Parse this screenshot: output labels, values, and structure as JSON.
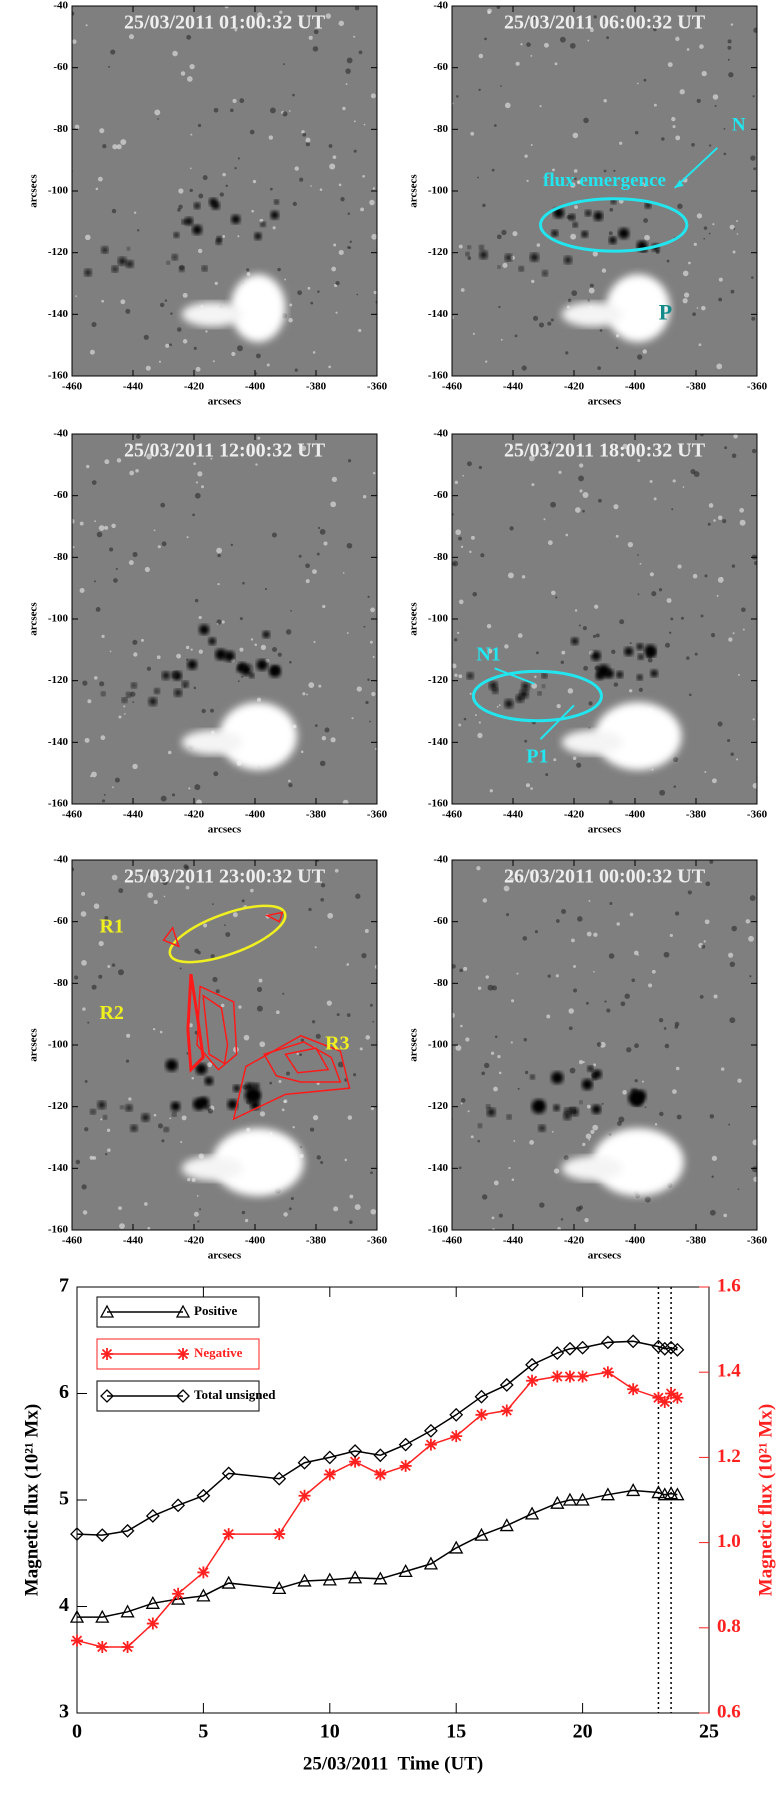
{
  "chart_data": [
    {
      "type": "image",
      "title": "25/03/2011 01:00:32 UT",
      "xlabel": "arcsecs",
      "ylabel": "arcsecs",
      "xlim": [
        -460,
        -360
      ],
      "ylim": [
        -160,
        -40
      ],
      "xticks": [
        -460,
        -440,
        -420,
        -400,
        -380,
        -360
      ],
      "yticks": [
        -160,
        -140,
        -120,
        -100,
        -80,
        -60,
        -40
      ],
      "annotations": []
    },
    {
      "type": "image",
      "title": "25/03/2011 06:00:32 UT",
      "xlabel": "arcsecs",
      "ylabel": "arcsecs",
      "xlim": [
        -460,
        -360
      ],
      "ylim": [
        -160,
        -40
      ],
      "xticks": [
        -460,
        -440,
        -420,
        -400,
        -380,
        -360
      ],
      "yticks": [
        -160,
        -140,
        -120,
        -100,
        -80,
        -60,
        -40
      ],
      "annotations": [
        "flux emergence",
        "N",
        "P"
      ]
    },
    {
      "type": "image",
      "title": "25/03/2011 12:00:32 UT",
      "xlabel": "arcsecs",
      "ylabel": "arcsecs",
      "xlim": [
        -460,
        -360
      ],
      "ylim": [
        -160,
        -40
      ],
      "xticks": [
        -460,
        -440,
        -420,
        -400,
        -380,
        -360
      ],
      "yticks": [
        -160,
        -140,
        -120,
        -100,
        -80,
        -60,
        -40
      ],
      "annotations": []
    },
    {
      "type": "image",
      "title": "25/03/2011 18:00:32 UT",
      "xlabel": "arcsecs",
      "ylabel": "arcsecs",
      "xlim": [
        -460,
        -360
      ],
      "ylim": [
        -160,
        -40
      ],
      "xticks": [
        -460,
        -440,
        -420,
        -400,
        -380,
        -360
      ],
      "yticks": [
        -160,
        -140,
        -120,
        -100,
        -80,
        -60,
        -40
      ],
      "annotations": [
        "N1",
        "P1"
      ]
    },
    {
      "type": "image",
      "title": "25/03/2011 23:00:32 UT",
      "xlabel": "arcsecs",
      "ylabel": "arcsecs",
      "xlim": [
        -460,
        -360
      ],
      "ylim": [
        -160,
        -40
      ],
      "xticks": [
        -460,
        -440,
        -420,
        -400,
        -380,
        -360
      ],
      "yticks": [
        -160,
        -140,
        -120,
        -100,
        -80,
        -60,
        -40
      ],
      "annotations": [
        "R1",
        "R2",
        "R3"
      ]
    },
    {
      "type": "image",
      "title": "26/03/2011 00:00:32 UT",
      "xlabel": "arcsecs",
      "ylabel": "arcsecs",
      "xlim": [
        -460,
        -360
      ],
      "ylim": [
        -160,
        -40
      ],
      "xticks": [
        -460,
        -440,
        -420,
        -400,
        -380,
        -360
      ],
      "yticks": [
        -160,
        -140,
        -120,
        -100,
        -80,
        -60,
        -40
      ],
      "annotations": []
    },
    {
      "type": "line",
      "xlabel": "25/03/2011  Time (UT)",
      "ylabel": "Magnetic flux (10²¹ Mx)",
      "y2label": "Magnetic flux (10²¹ Mx)",
      "x": [
        0,
        1,
        2,
        3,
        4,
        5,
        6,
        8,
        9,
        10,
        11,
        12,
        13,
        14,
        15,
        16,
        17,
        18,
        19,
        19.5,
        20,
        21,
        22,
        23,
        23.25,
        23.5,
        23.75
      ],
      "series": [
        {
          "name": "Positive",
          "color": "#000000",
          "marker": "triangle",
          "values": [
            3.9,
            3.9,
            3.95,
            4.03,
            4.07,
            4.1,
            4.22,
            4.17,
            4.24,
            4.25,
            4.27,
            4.26,
            4.33,
            4.4,
            4.55,
            4.67,
            4.76,
            4.87,
            4.97,
            5.0,
            5.0,
            5.05,
            5.09,
            5.07,
            5.05,
            5.06,
            5.05
          ]
        },
        {
          "name": "Negative",
          "color": "#ff2020",
          "marker": "asterisk",
          "axis": "y2",
          "values": [
            0.77,
            0.755,
            0.755,
            0.81,
            0.88,
            0.93,
            1.02,
            1.02,
            1.11,
            1.16,
            1.19,
            1.16,
            1.18,
            1.23,
            1.25,
            1.3,
            1.31,
            1.38,
            1.39,
            1.39,
            1.39,
            1.4,
            1.36,
            1.34,
            1.33,
            1.35,
            1.34
          ]
        },
        {
          "name": "Total unsigned",
          "color": "#000000",
          "marker": "diamond",
          "values": [
            4.68,
            4.67,
            4.71,
            4.85,
            4.95,
            5.04,
            5.25,
            5.2,
            5.35,
            5.4,
            5.46,
            5.42,
            5.52,
            5.65,
            5.8,
            5.97,
            6.08,
            6.27,
            6.38,
            6.42,
            6.43,
            6.48,
            6.49,
            6.44,
            6.42,
            6.43,
            6.41
          ]
        }
      ],
      "xlim": [
        0,
        25
      ],
      "xticks": [
        0,
        5,
        10,
        15,
        20,
        25
      ],
      "ylim": [
        3,
        7
      ],
      "yticks": [
        3,
        4,
        5,
        6,
        7
      ],
      "y2lim": [
        0.6,
        1.6
      ],
      "y2ticks": [
        0.6,
        0.8,
        {
          "value": 1,
          "label": "1.0"
        },
        1.2,
        1.4,
        1.6
      ],
      "vlines": [
        23,
        23.5
      ]
    }
  ]
}
